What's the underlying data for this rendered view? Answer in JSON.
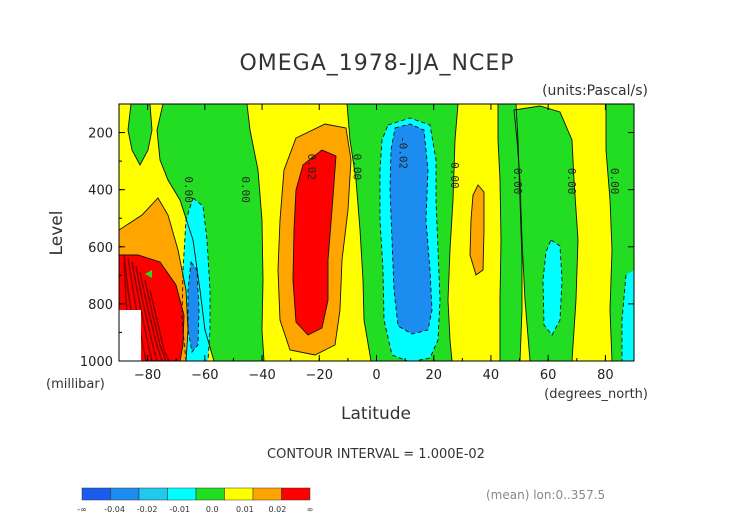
{
  "chart_data": {
    "type": "contour",
    "title": "OMEGA_1978-JJA_NCEP",
    "units": "(units:Pascal/s)",
    "ylabel": "Level",
    "yunits": "(millibar)",
    "xlabel": "Latitude",
    "xunits": "(degrees_north)",
    "xlim": [
      -90,
      90
    ],
    "ylim": [
      1000,
      100
    ],
    "x_ticks": [
      -80,
      -60,
      -40,
      -20,
      0,
      20,
      40,
      60,
      80
    ],
    "y_ticks": [
      200,
      400,
      600,
      800,
      1000
    ],
    "contour_interval_text": "CONTOUR INTERVAL = 1.000E-02",
    "footer": "(mean) lon:0..357.5",
    "colorbar": {
      "labels": [
        "-∞",
        "-0.04",
        "-0.02",
        "-0.01",
        "0.0",
        "0.01",
        "0.02",
        "∞"
      ],
      "colors": [
        "#1a5cf0",
        "#1c8cf0",
        "#23c8f0",
        "#00ffff",
        "#22dd22",
        "#ffff00",
        "#ffa500",
        "#ff0000"
      ]
    },
    "contour_labels": [
      {
        "x": -67,
        "y": 400,
        "text": "0.00"
      },
      {
        "x": -47,
        "y": 400,
        "text": "0.00"
      },
      {
        "x": -24,
        "y": 320,
        "text": "0.02"
      },
      {
        "x": -8,
        "y": 320,
        "text": "0.00"
      },
      {
        "x": 8,
        "y": 270,
        "text": "-0.02"
      },
      {
        "x": 26,
        "y": 350,
        "text": "0.00"
      },
      {
        "x": 48,
        "y": 370,
        "text": "0.00"
      },
      {
        "x": 67,
        "y": 370,
        "text": "0.00"
      },
      {
        "x": 82,
        "y": 370,
        "text": "0.00"
      }
    ]
  }
}
